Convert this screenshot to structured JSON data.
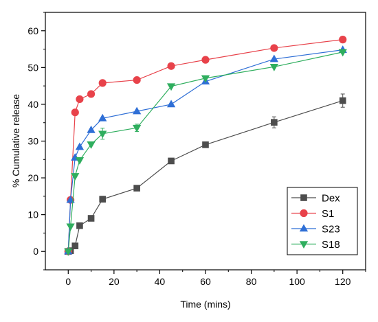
{
  "chart_data": {
    "type": "line",
    "title": "",
    "xlabel": "Time (mins)",
    "ylabel": "% Cumulative release",
    "xlim": [
      -10,
      130
    ],
    "ylim": [
      -5,
      65
    ],
    "xticks": [
      0,
      20,
      40,
      60,
      80,
      100,
      120
    ],
    "yticks": [
      0,
      10,
      20,
      30,
      40,
      50,
      60
    ],
    "grid": false,
    "legend_position": "bottom-right",
    "series": [
      {
        "name": "Dex",
        "color": "#4d4d4d",
        "marker": "square",
        "x": [
          0,
          1,
          3,
          5,
          10,
          15,
          30,
          45,
          60,
          90,
          120
        ],
        "y": [
          0,
          0.2,
          1.5,
          7.0,
          9.0,
          14.2,
          17.2,
          24.6,
          29.0,
          35.1,
          41.0
        ],
        "error": [
          0,
          0,
          0,
          0,
          0,
          0.8,
          0,
          0,
          0,
          1.5,
          1.8
        ]
      },
      {
        "name": "S1",
        "color": "#e8424a",
        "marker": "circle",
        "x": [
          0,
          1,
          3,
          5,
          10,
          15,
          30,
          45,
          60,
          90,
          120
        ],
        "y": [
          0,
          14.0,
          37.8,
          41.4,
          42.8,
          45.8,
          46.6,
          50.4,
          52.1,
          55.3,
          57.6
        ],
        "error": [
          0,
          0,
          0,
          0,
          0.8,
          0,
          0,
          0,
          0,
          0,
          0
        ]
      },
      {
        "name": "S23",
        "color": "#2f6fd6",
        "marker": "triangle-up",
        "x": [
          0,
          1,
          3,
          5,
          10,
          15,
          30,
          45,
          60,
          90,
          120
        ],
        "y": [
          0,
          14.0,
          25.5,
          28.4,
          33.0,
          36.2,
          38.1,
          40.0,
          46.2,
          52.3,
          54.8
        ],
        "error": [
          0,
          0,
          0,
          0,
          0,
          0,
          0,
          0,
          0,
          0,
          0
        ]
      },
      {
        "name": "S18",
        "color": "#2fae5e",
        "marker": "triangle-down",
        "x": [
          0,
          1,
          3,
          5,
          10,
          15,
          30,
          45,
          60,
          90,
          120
        ],
        "y": [
          0,
          6.8,
          20.5,
          24.8,
          29.1,
          32.0,
          33.6,
          44.9,
          47.1,
          50.2,
          54.2
        ],
        "error": [
          0,
          0,
          0,
          0,
          0,
          1.5,
          1.0,
          0,
          0,
          0,
          0
        ]
      }
    ]
  }
}
